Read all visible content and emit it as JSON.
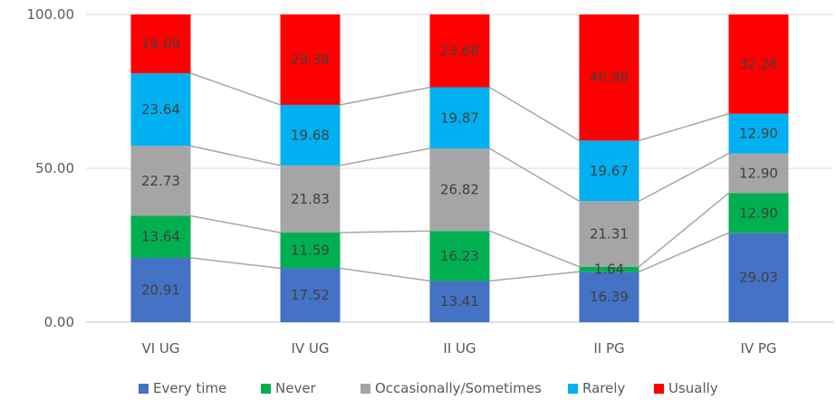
{
  "chart_data": {
    "type": "bar",
    "stacked": true,
    "categories": [
      "VI UG",
      "IV UG",
      "II UG",
      "II PG",
      "IV PG"
    ],
    "series": [
      {
        "name": "Every time",
        "color": "#4472C4",
        "values": [
          20.91,
          17.52,
          13.41,
          16.39,
          29.03
        ],
        "labels": [
          "20.91",
          "17.52",
          "13.41",
          "16.39",
          "29.03"
        ]
      },
      {
        "name": "Never",
        "color": "#00B050",
        "values": [
          13.64,
          11.59,
          16.23,
          1.64,
          12.9
        ],
        "labels": [
          "13.64",
          "11.59",
          "16.23",
          "1.64",
          "12.90"
        ]
      },
      {
        "name": "Occasionally/Sometimes",
        "color": "#A5A5A5",
        "values": [
          22.73,
          21.83,
          26.82,
          21.31,
          12.9
        ],
        "labels": [
          "22.73",
          "21.83",
          "26.82",
          "21.31",
          "12.90"
        ]
      },
      {
        "name": "Rarely",
        "color": "#00B0F0",
        "values": [
          23.64,
          19.68,
          19.87,
          19.67,
          12.9
        ],
        "labels": [
          "23.64",
          "19.68",
          "19.87",
          "19.67",
          "12.90"
        ]
      },
      {
        "name": "Usually",
        "color": "#FF0000",
        "values": [
          19.09,
          29.38,
          23.68,
          40.98,
          32.26
        ],
        "labels": [
          "19.09",
          "29.38",
          "23.68",
          "40.98",
          "32.26"
        ]
      }
    ],
    "ylim": [
      0,
      100
    ],
    "yticks": [
      "0.00",
      "50.00",
      "100.00"
    ],
    "ytick_values": [
      0,
      50,
      100
    ],
    "gridlines": true,
    "series_lines": true,
    "legend_position": "bottom",
    "title": "",
    "xlabel": "",
    "ylabel": ""
  }
}
